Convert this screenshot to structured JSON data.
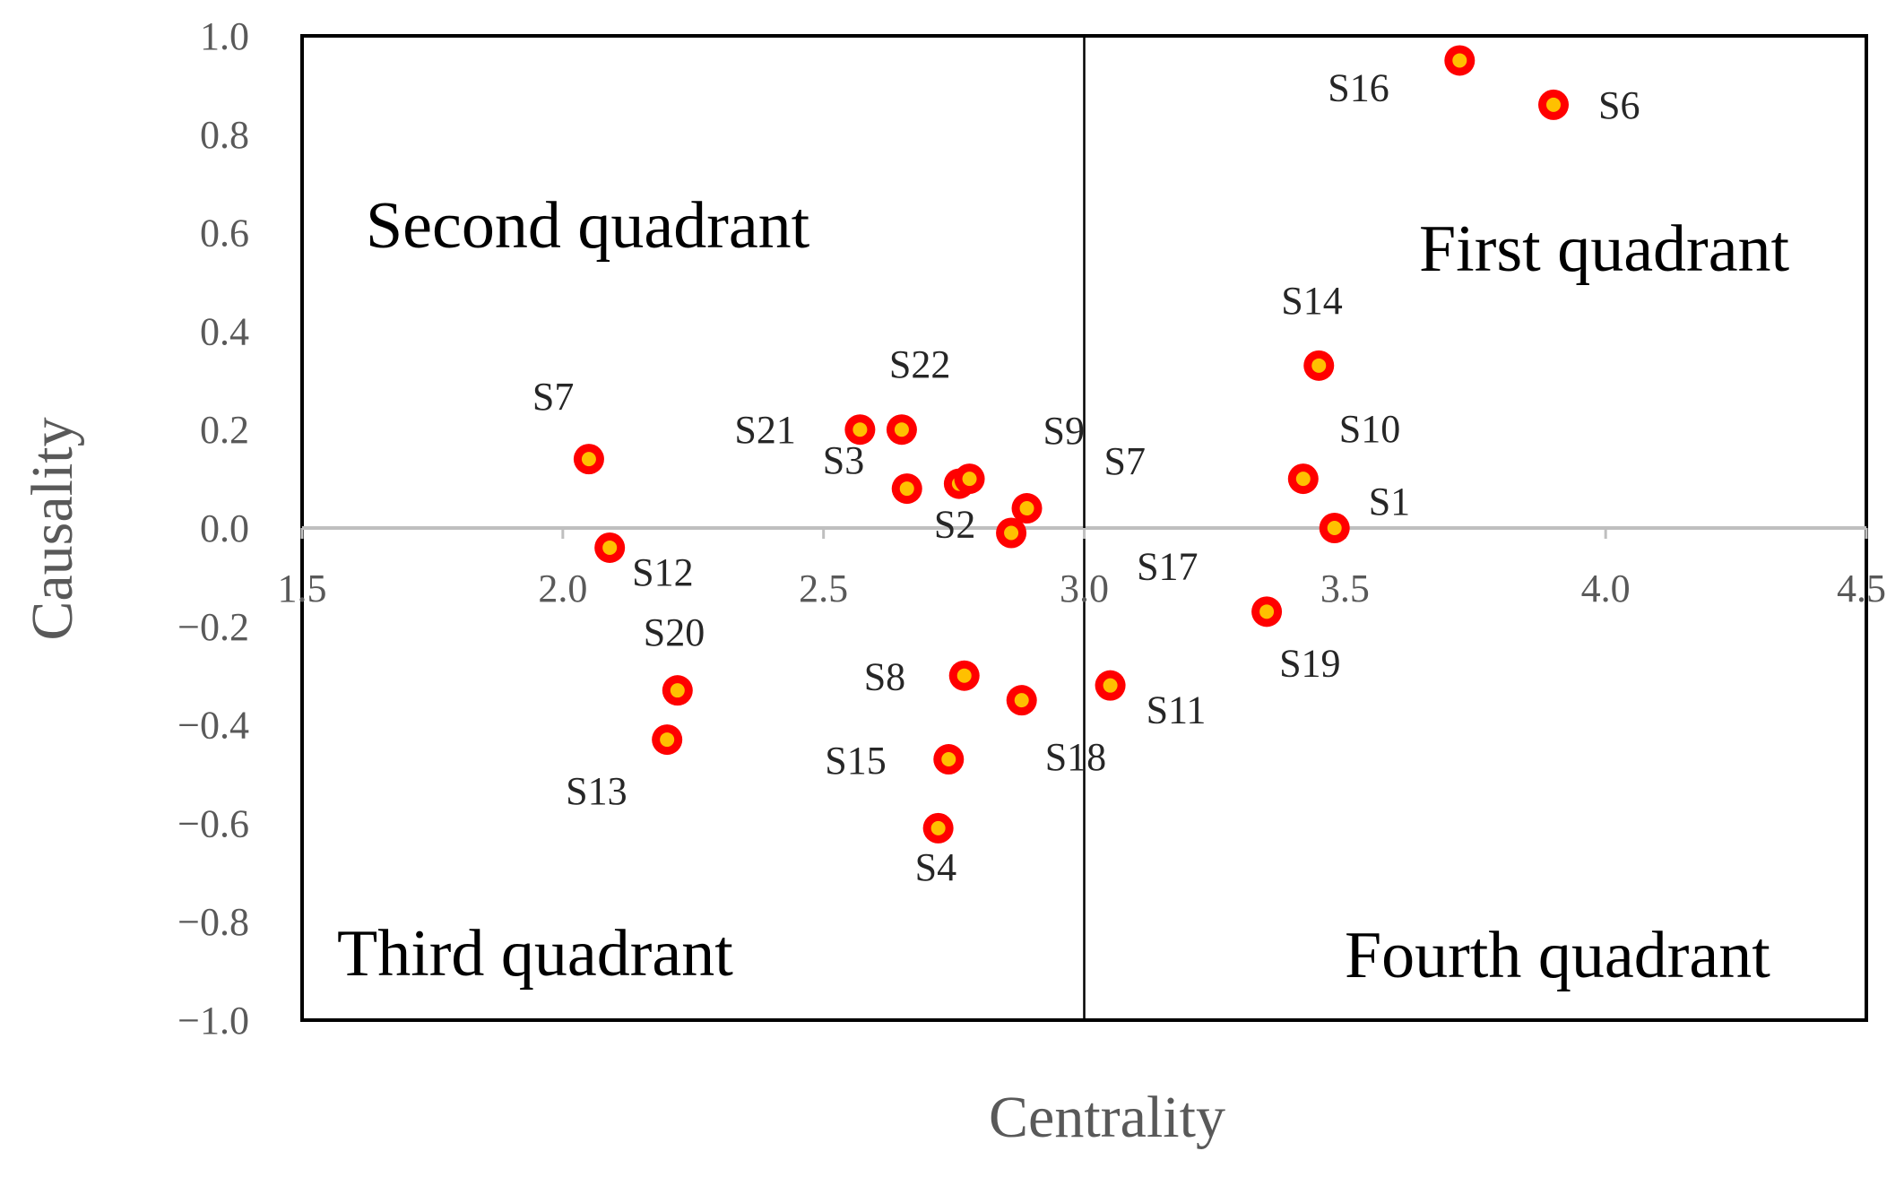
{
  "chart_data": {
    "type": "scatter",
    "xlabel": "Centrality",
    "ylabel": "Causality",
    "xlim": [
      1.5,
      4.5
    ],
    "ylim": [
      -1.0,
      1.0
    ],
    "x_ticks": [
      "1.5",
      "2.0",
      "2.5",
      "3.0",
      "3.5",
      "4.0",
      "4.5"
    ],
    "y_ticks": [
      "1.0",
      "0.8",
      "0.6",
      "0.4",
      "0.2",
      "0.0",
      "−0.2",
      "−0.4",
      "−0.6",
      "−0.8",
      "−1.0"
    ],
    "quadrant_divider_x": 3.0,
    "quadrant_labels": [
      {
        "text": "Second quadrant"
      },
      {
        "text": "First quadrant"
      },
      {
        "text": "Third quadrant"
      },
      {
        "text": "Fourth quadrant"
      }
    ],
    "marker_fill": "#ff0000",
    "marker_center": "#ffc000",
    "grid": false,
    "points": [
      {
        "label": "S16",
        "x": 3.72,
        "y": 0.95
      },
      {
        "label": "S6",
        "x": 3.9,
        "y": 0.86
      },
      {
        "label": "S14",
        "x": 3.45,
        "y": 0.33
      },
      {
        "label": "S10",
        "x": 3.42,
        "y": 0.1
      },
      {
        "label": "S1",
        "x": 3.48,
        "y": 0.0
      },
      {
        "label": "S19",
        "x": 3.35,
        "y": -0.17
      },
      {
        "label": "S11",
        "x": 3.05,
        "y": -0.32
      },
      {
        "label": "S7",
        "x": 2.05,
        "y": 0.14
      },
      {
        "label": "S12",
        "x": 2.09,
        "y": -0.04
      },
      {
        "label": "S20",
        "x": 2.22,
        "y": -0.33
      },
      {
        "label": "S13",
        "x": 2.2,
        "y": -0.43
      },
      {
        "label": "S21",
        "x": 2.57,
        "y": 0.2
      },
      {
        "label": "S22",
        "x": 2.65,
        "y": 0.2
      },
      {
        "label": "S3",
        "x": 2.66,
        "y": 0.08
      },
      {
        "label": "S2",
        "x": 2.76,
        "y": 0.09
      },
      {
        "label": "S9",
        "x": 2.89,
        "y": 0.04
      },
      {
        "label": "S7",
        "x": 2.78,
        "y": 0.1
      },
      {
        "label": "S17",
        "x": 2.86,
        "y": -0.01
      },
      {
        "label": "S8",
        "x": 2.77,
        "y": -0.3
      },
      {
        "label": "S18",
        "x": 2.88,
        "y": -0.35
      },
      {
        "label": "S15",
        "x": 2.74,
        "y": -0.47
      },
      {
        "label": "S4",
        "x": 2.72,
        "y": -0.61
      }
    ]
  }
}
